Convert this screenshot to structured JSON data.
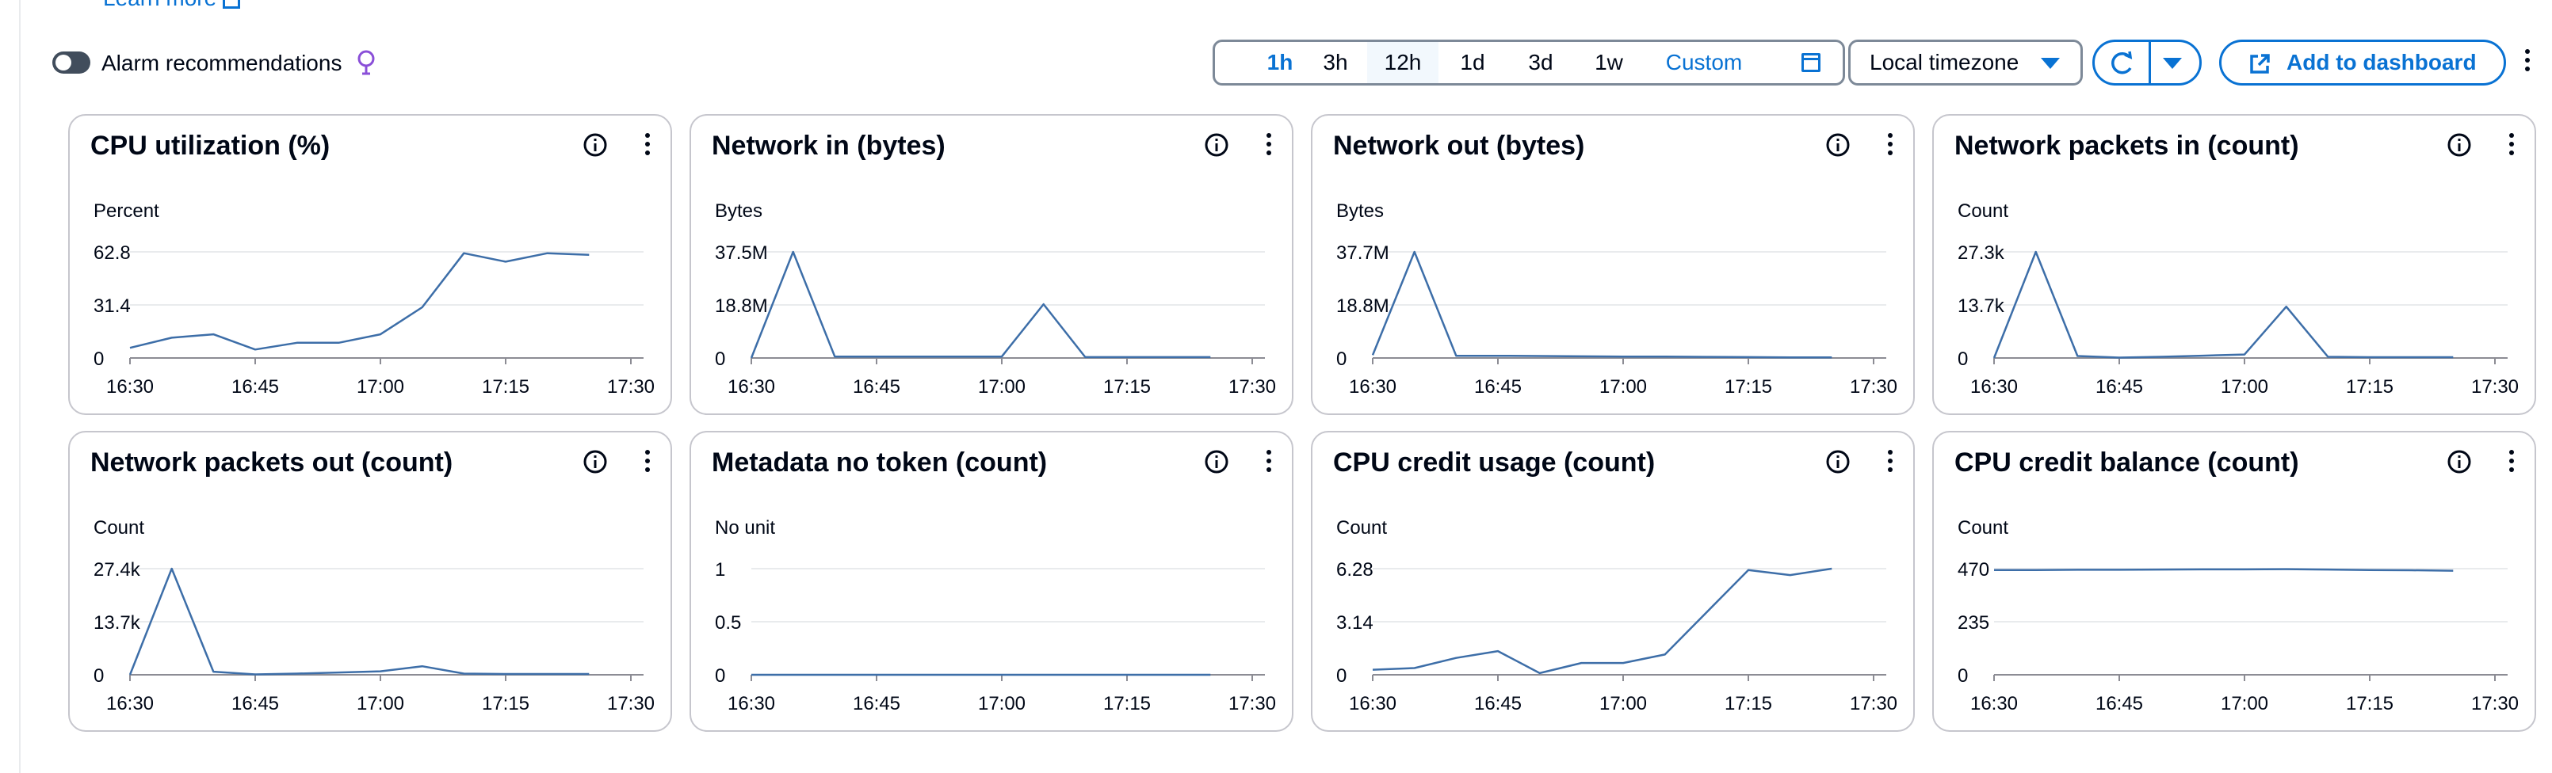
{
  "header": {
    "learn_more": "Learn more",
    "alarm_recommendations": "Alarm recommendations"
  },
  "time_range": {
    "options": [
      "1h",
      "3h",
      "12h",
      "1d",
      "3d",
      "1w"
    ],
    "selected": "1h",
    "custom_label": "Custom"
  },
  "timezone": {
    "selected": "Local timezone"
  },
  "actions": {
    "add_to_dashboard": "Add to dashboard"
  },
  "colors": {
    "line": "#3d6ea8",
    "accent": "#0972d3",
    "grid": "#e9ebed",
    "text": "#000716"
  },
  "chart_data": [
    {
      "type": "line",
      "title": "CPU utilization (%)",
      "ylabel": "Percent",
      "yticks": [
        "62.8",
        "31.4",
        "0"
      ],
      "ylim": [
        0,
        62.8
      ],
      "xticks": [
        "16:30",
        "16:45",
        "17:00",
        "17:15",
        "17:30"
      ],
      "series": [
        {
          "x": [
            "16:30",
            "16:35",
            "16:40",
            "16:45",
            "16:50",
            "16:55",
            "17:00",
            "17:05",
            "17:10",
            "17:15",
            "17:20",
            "17:25"
          ],
          "values": [
            6,
            12,
            14,
            5,
            9,
            9,
            14,
            30,
            62,
            57,
            62,
            61
          ]
        }
      ]
    },
    {
      "type": "line",
      "title": "Network in (bytes)",
      "ylabel": "Bytes",
      "yticks": [
        "37.5M",
        "18.8M",
        "0"
      ],
      "ylim": [
        0,
        37.5
      ],
      "xticks": [
        "16:30",
        "16:45",
        "17:00",
        "17:15",
        "17:30"
      ],
      "series": [
        {
          "x": [
            "16:30",
            "16:35",
            "16:40",
            "16:45",
            "16:50",
            "16:55",
            "17:00",
            "17:05",
            "17:10",
            "17:15",
            "17:20",
            "17:25"
          ],
          "values": [
            0,
            37.5,
            0.5,
            0.5,
            0.5,
            0.5,
            0.5,
            19,
            0.3,
            0.3,
            0.3,
            0.3
          ]
        }
      ]
    },
    {
      "type": "line",
      "title": "Network out (bytes)",
      "ylabel": "Bytes",
      "yticks": [
        "37.7M",
        "18.8M",
        "0"
      ],
      "ylim": [
        0,
        37.7
      ],
      "xticks": [
        "16:30",
        "16:45",
        "17:00",
        "17:15",
        "17:30"
      ],
      "series": [
        {
          "x": [
            "16:30",
            "16:35",
            "16:40",
            "16:45",
            "16:50",
            "16:55",
            "17:00",
            "17:05",
            "17:10",
            "17:15",
            "17:20",
            "17:25"
          ],
          "values": [
            1,
            37.7,
            0.8,
            0.8,
            0.7,
            0.6,
            0.5,
            0.5,
            0.4,
            0.3,
            0.2,
            0.2
          ]
        }
      ]
    },
    {
      "type": "line",
      "title": "Network packets in (count)",
      "ylabel": "Count",
      "yticks": [
        "27.3k",
        "13.7k",
        "0"
      ],
      "ylim": [
        0,
        27.3
      ],
      "xticks": [
        "16:30",
        "16:45",
        "17:00",
        "17:15",
        "17:30"
      ],
      "series": [
        {
          "x": [
            "16:30",
            "16:35",
            "16:40",
            "16:45",
            "16:50",
            "16:55",
            "17:00",
            "17:05",
            "17:10",
            "17:15",
            "17:20",
            "17:25"
          ],
          "values": [
            0,
            27.3,
            0.5,
            0.1,
            0.3,
            0.6,
            0.9,
            13.2,
            0.3,
            0.2,
            0.2,
            0.2
          ]
        }
      ]
    },
    {
      "type": "line",
      "title": "Network packets out (count)",
      "ylabel": "Count",
      "yticks": [
        "27.4k",
        "13.7k",
        "0"
      ],
      "ylim": [
        0,
        27.4
      ],
      "xticks": [
        "16:30",
        "16:45",
        "17:00",
        "17:15",
        "17:30"
      ],
      "series": [
        {
          "x": [
            "16:30",
            "16:35",
            "16:40",
            "16:45",
            "16:50",
            "16:55",
            "17:00",
            "17:05",
            "17:10",
            "17:15",
            "17:20",
            "17:25"
          ],
          "values": [
            0,
            27.4,
            0.8,
            0.1,
            0.3,
            0.6,
            0.9,
            2.2,
            0.3,
            0.2,
            0.2,
            0.2
          ]
        }
      ]
    },
    {
      "type": "line",
      "title": "Metadata no token (count)",
      "ylabel": "No unit",
      "yticks": [
        "1",
        "0.5",
        "0"
      ],
      "ylim": [
        0,
        1
      ],
      "xticks": [
        "16:30",
        "16:45",
        "17:00",
        "17:15",
        "17:30"
      ],
      "series": [
        {
          "x": [
            "16:30",
            "16:35",
            "16:40",
            "16:45",
            "16:50",
            "16:55",
            "17:00",
            "17:05",
            "17:10",
            "17:15",
            "17:20",
            "17:25"
          ],
          "values": [
            0,
            0,
            0,
            0,
            0,
            0,
            0,
            0,
            0,
            0,
            0,
            0
          ]
        }
      ]
    },
    {
      "type": "line",
      "title": "CPU credit usage (count)",
      "ylabel": "Count",
      "yticks": [
        "6.28",
        "3.14",
        "0"
      ],
      "ylim": [
        0,
        6.28
      ],
      "xticks": [
        "16:30",
        "16:45",
        "17:00",
        "17:15",
        "17:30"
      ],
      "series": [
        {
          "x": [
            "16:30",
            "16:35",
            "16:40",
            "16:45",
            "16:50",
            "16:55",
            "17:00",
            "17:05",
            "17:10",
            "17:15",
            "17:20",
            "17:25"
          ],
          "values": [
            0.3,
            0.4,
            1,
            1.4,
            0.1,
            0.7,
            0.7,
            1.2,
            3.7,
            6.2,
            5.9,
            6.28
          ]
        }
      ]
    },
    {
      "type": "line",
      "title": "CPU credit balance (count)",
      "ylabel": "Count",
      "yticks": [
        "470",
        "235",
        "0"
      ],
      "ylim": [
        0,
        470
      ],
      "xticks": [
        "16:30",
        "16:45",
        "17:00",
        "17:15",
        "17:30"
      ],
      "series": [
        {
          "x": [
            "16:30",
            "16:35",
            "16:40",
            "16:45",
            "16:50",
            "16:55",
            "17:00",
            "17:05",
            "17:10",
            "17:15",
            "17:20",
            "17:25"
          ],
          "values": [
            464,
            464,
            465,
            465,
            466,
            467,
            467,
            468,
            466,
            464,
            463,
            461
          ]
        }
      ]
    }
  ]
}
